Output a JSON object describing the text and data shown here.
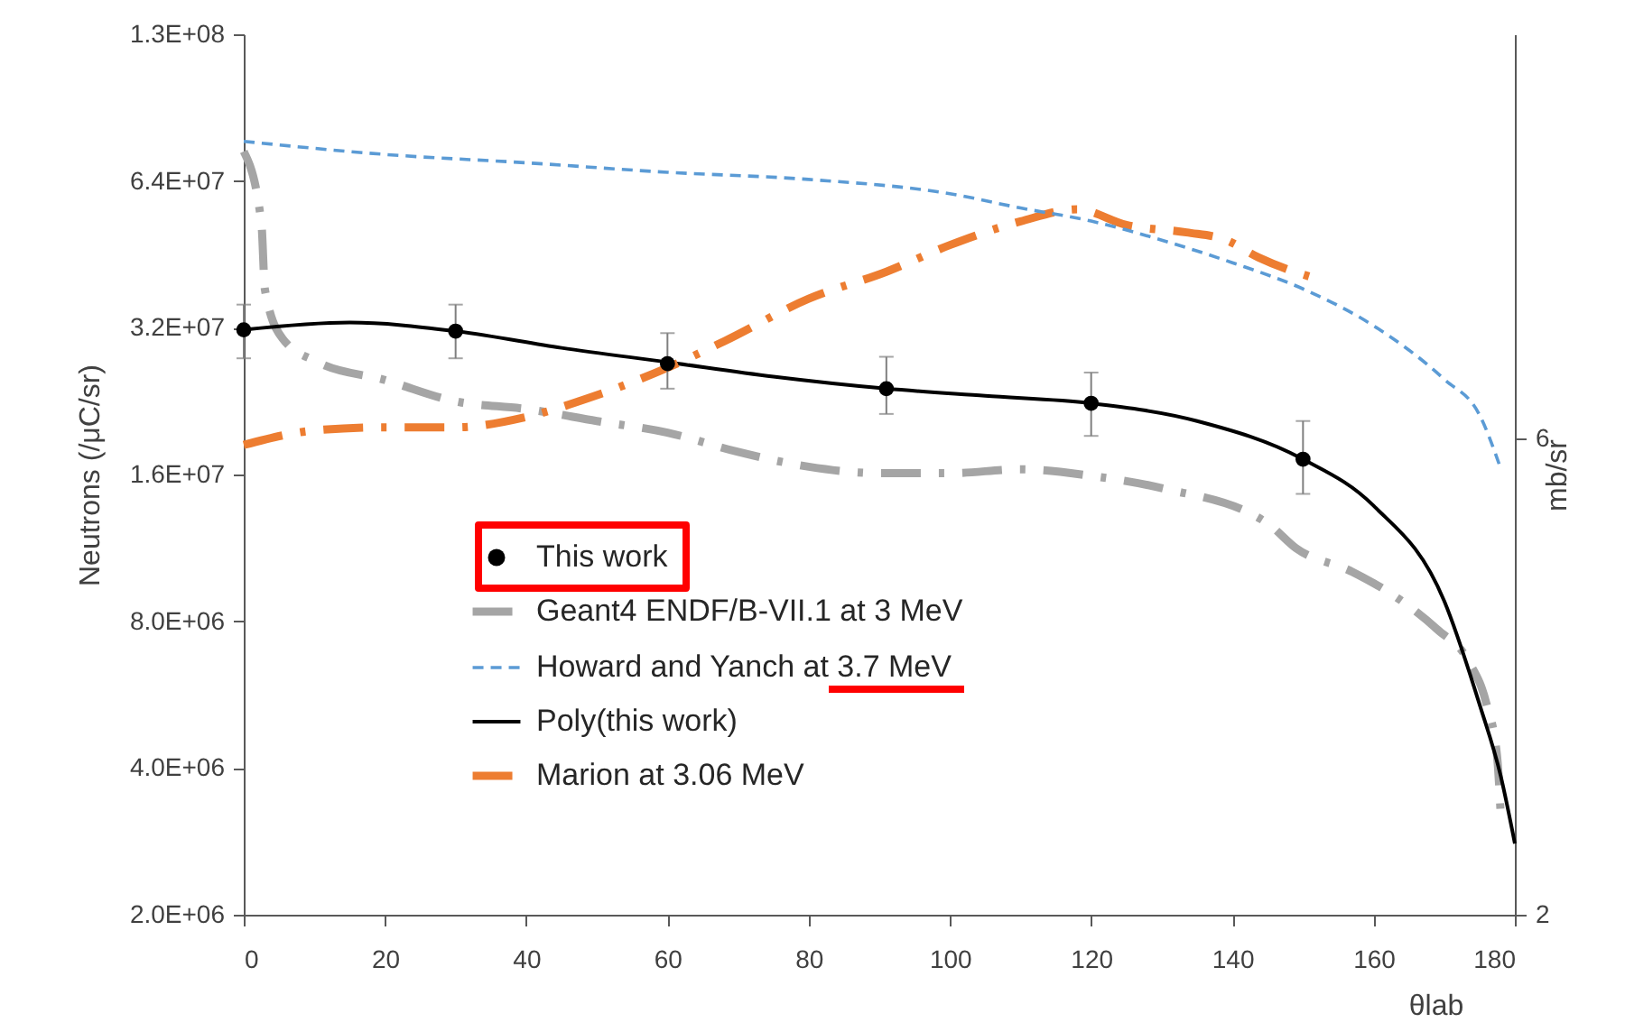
{
  "chart_data": {
    "type": "line",
    "xlabel": "θlab",
    "ylabel": "Neutrons (/μC/sr)",
    "y2label": "mb/sr",
    "log": "y",
    "legend": "bottom left",
    "xlim": [
      0,
      180
    ],
    "xticks": [
      0,
      20,
      40,
      60,
      80,
      100,
      120,
      140,
      160,
      180
    ],
    "ylim": [
      2000000,
      128000000
    ],
    "yticks": [
      {
        "value": 2000000,
        "label": "2.0E+06"
      },
      {
        "value": 4000000,
        "label": "4.0E+06"
      },
      {
        "value": 8000000,
        "label": "8.0E+06"
      },
      {
        "value": 16000000,
        "label": "1.6E+07"
      },
      {
        "value": 32000000,
        "label": "3.2E+07"
      },
      {
        "value": 64000000,
        "label": "6.4E+07"
      },
      {
        "value": 128000000,
        "label": "1.3E+08"
      }
    ],
    "y2lim": [
      2,
      9.4
    ],
    "y2ticks": [
      2,
      6
    ],
    "series": [
      {
        "name": "This work",
        "type": "scatter",
        "marker": "circle",
        "color": "#000000",
        "x": [
          0,
          30,
          60,
          91,
          120,
          150
        ],
        "values": [
          31700000,
          31500000,
          27000000,
          24000000,
          22400000,
          17200000
        ],
        "errors": [
          [
            27700000,
            35700000
          ],
          [
            27700000,
            35700000
          ],
          [
            24000000,
            31200000
          ],
          [
            21300000,
            27900000
          ],
          [
            19200000,
            25900000
          ],
          [
            14600000,
            20600000
          ]
        ]
      },
      {
        "name": "Geant4 ENDF/B-VII.1 at 3 MeV",
        "line_style": "dashdot",
        "color": "#a5a5a5",
        "x": [
          0,
          2.5,
          3,
          5.5,
          10.5,
          20,
          30,
          40,
          50,
          60,
          70,
          80,
          90,
          100,
          110,
          120,
          130,
          145,
          149,
          157,
          164,
          169,
          173.5,
          176,
          177.5,
          178
        ],
        "values": [
          73600000,
          52400000,
          38300000,
          30400000,
          27200000,
          25000000,
          22600000,
          21800000,
          20600000,
          19500000,
          17800000,
          16600000,
          16100000,
          16100000,
          16400000,
          15900000,
          15000000,
          12700000,
          11300000,
          10100000,
          8800000,
          7700000,
          6600000,
          5400000,
          4200000,
          3200000
        ]
      },
      {
        "name": "Howard and Yanch at 3.7 MeV",
        "axis": "y2",
        "line_style": "dashed",
        "color": "#5b9bd5",
        "x": [
          0,
          20,
          40,
          60,
          80,
          100,
          110,
          120,
          130,
          140,
          150,
          160,
          170,
          175,
          178
        ],
        "values": [
          8.5,
          8.39,
          8.32,
          8.24,
          8.18,
          8.06,
          7.94,
          7.83,
          7.67,
          7.48,
          7.26,
          6.95,
          6.5,
          6.2,
          5.75
        ]
      },
      {
        "name": "Poly(this work)",
        "line_style": "solid",
        "color": "#000000",
        "x": [
          0,
          15,
          30,
          45,
          60,
          75,
          91,
          105,
          120,
          135,
          150,
          160,
          170,
          175,
          178,
          180
        ],
        "values": [
          31700000,
          32800000,
          31500000,
          29100000,
          27200000,
          25400000,
          24000000,
          23200000,
          22400000,
          20600000,
          17200000,
          13800000,
          8800000,
          5400000,
          3850000,
          2800000
        ]
      },
      {
        "name": "Marion at 3.06 MeV",
        "line_style": "dashdot",
        "color": "#ed7d31",
        "x": [
          0,
          10,
          20,
          30,
          40,
          49,
          60,
          68,
          80,
          91,
          100,
          110,
          118,
          125,
          133.5,
          139,
          143.7,
          152
        ],
        "values": [
          18400000,
          19700000,
          20000000,
          20000000,
          21000000,
          23000000,
          26500000,
          30000000,
          36700000,
          41700000,
          47300000,
          52900000,
          56000000,
          52000000,
          50200000,
          48500000,
          44600000,
          40300000
        ]
      }
    ]
  }
}
